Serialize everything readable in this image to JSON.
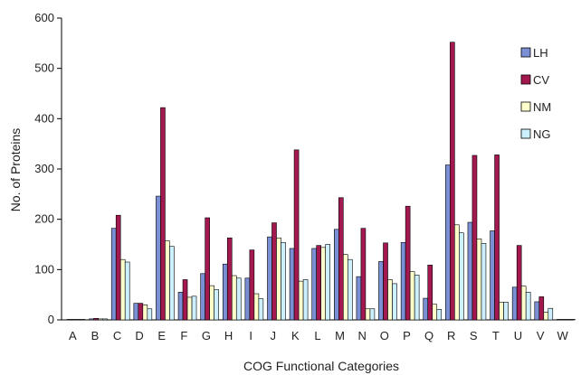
{
  "chart_data": {
    "type": "bar",
    "title": "",
    "xlabel": "COG Functional Categories",
    "ylabel": "No. of Proteins",
    "ylim": [
      0,
      600
    ],
    "yticks": [
      0,
      100,
      200,
      300,
      400,
      500,
      600
    ],
    "grid": false,
    "legend_position": "right",
    "categories": [
      "A",
      "B",
      "C",
      "D",
      "E",
      "F",
      "G",
      "H",
      "I",
      "J",
      "K",
      "L",
      "M",
      "N",
      "O",
      "P",
      "Q",
      "R",
      "S",
      "T",
      "U",
      "V",
      "W"
    ],
    "series": [
      {
        "name": "LH",
        "color": "#7b8fd4",
        "values": [
          1,
          2,
          182,
          33,
          246,
          55,
          92,
          111,
          83,
          165,
          142,
          142,
          180,
          86,
          116,
          154,
          43,
          308,
          194,
          177,
          65,
          36,
          1
        ]
      },
      {
        "name": "CV",
        "color": "#a3194f",
        "values": [
          1,
          3,
          208,
          33,
          422,
          80,
          203,
          163,
          139,
          193,
          338,
          148,
          243,
          182,
          153,
          226,
          109,
          552,
          327,
          328,
          148,
          46,
          1
        ]
      },
      {
        "name": "NM",
        "color": "#ffffcc",
        "values": [
          1,
          2,
          120,
          30,
          157,
          45,
          68,
          88,
          52,
          163,
          77,
          144,
          130,
          22,
          80,
          96,
          31,
          189,
          161,
          35,
          67,
          15,
          1
        ]
      },
      {
        "name": "NG",
        "color": "#ccf0ff",
        "values": [
          1,
          2,
          115,
          22,
          146,
          47,
          60,
          83,
          42,
          154,
          80,
          150,
          120,
          22,
          72,
          89,
          21,
          173,
          152,
          35,
          55,
          23,
          1
        ]
      }
    ]
  }
}
